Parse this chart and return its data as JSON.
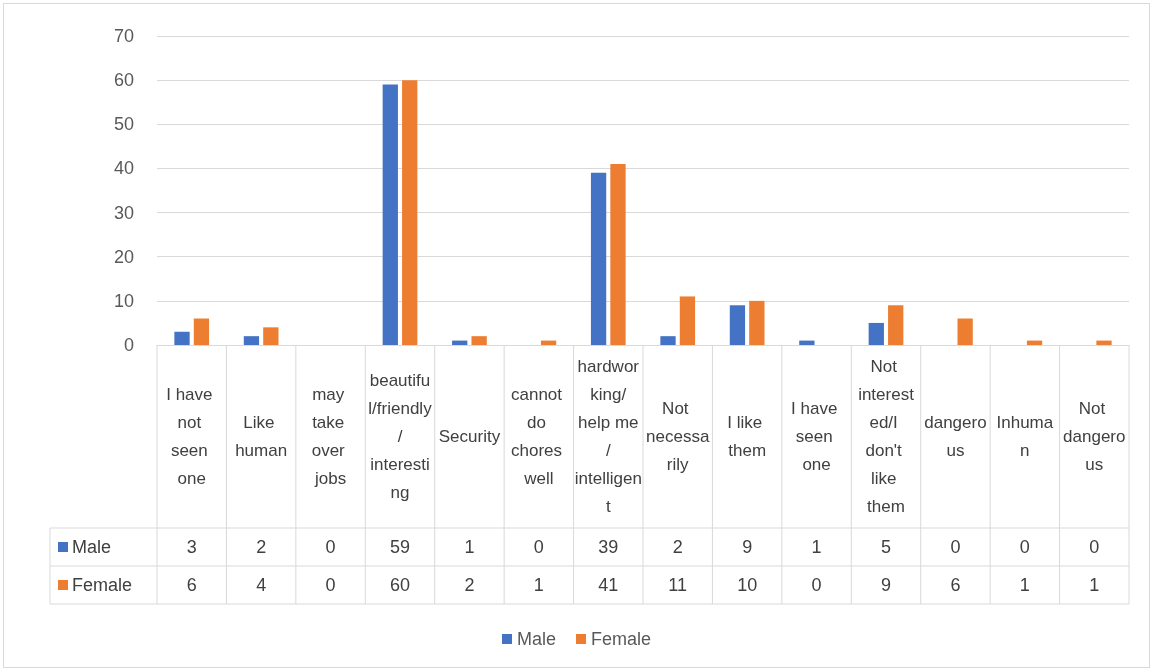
{
  "chart_data": {
    "type": "bar",
    "categories": [
      "I have not seen one",
      "Like human",
      "may take over jobs",
      "beautiful/friendly/interesting",
      "Security",
      "cannot do chores well",
      "hardworking/help me/intelligent",
      "Not necessarily",
      "I like them",
      "I have seen one",
      "Not interested/I don't like them",
      "dangerous",
      "Inhuman",
      "Not dangerous"
    ],
    "series": [
      {
        "name": "Male",
        "color": "#4472c4",
        "values": [
          3,
          2,
          0,
          59,
          1,
          0,
          39,
          2,
          9,
          1,
          5,
          0,
          0,
          0
        ]
      },
      {
        "name": "Female",
        "color": "#ed7d31",
        "values": [
          6,
          4,
          0,
          60,
          2,
          1,
          41,
          11,
          10,
          0,
          9,
          6,
          1,
          1
        ]
      }
    ],
    "ylim": [
      0,
      70
    ],
    "yticks": [
      0,
      10,
      20,
      30,
      40,
      50,
      60,
      70
    ],
    "grid": "y",
    "legend": "bottom",
    "data_labels": true
  }
}
